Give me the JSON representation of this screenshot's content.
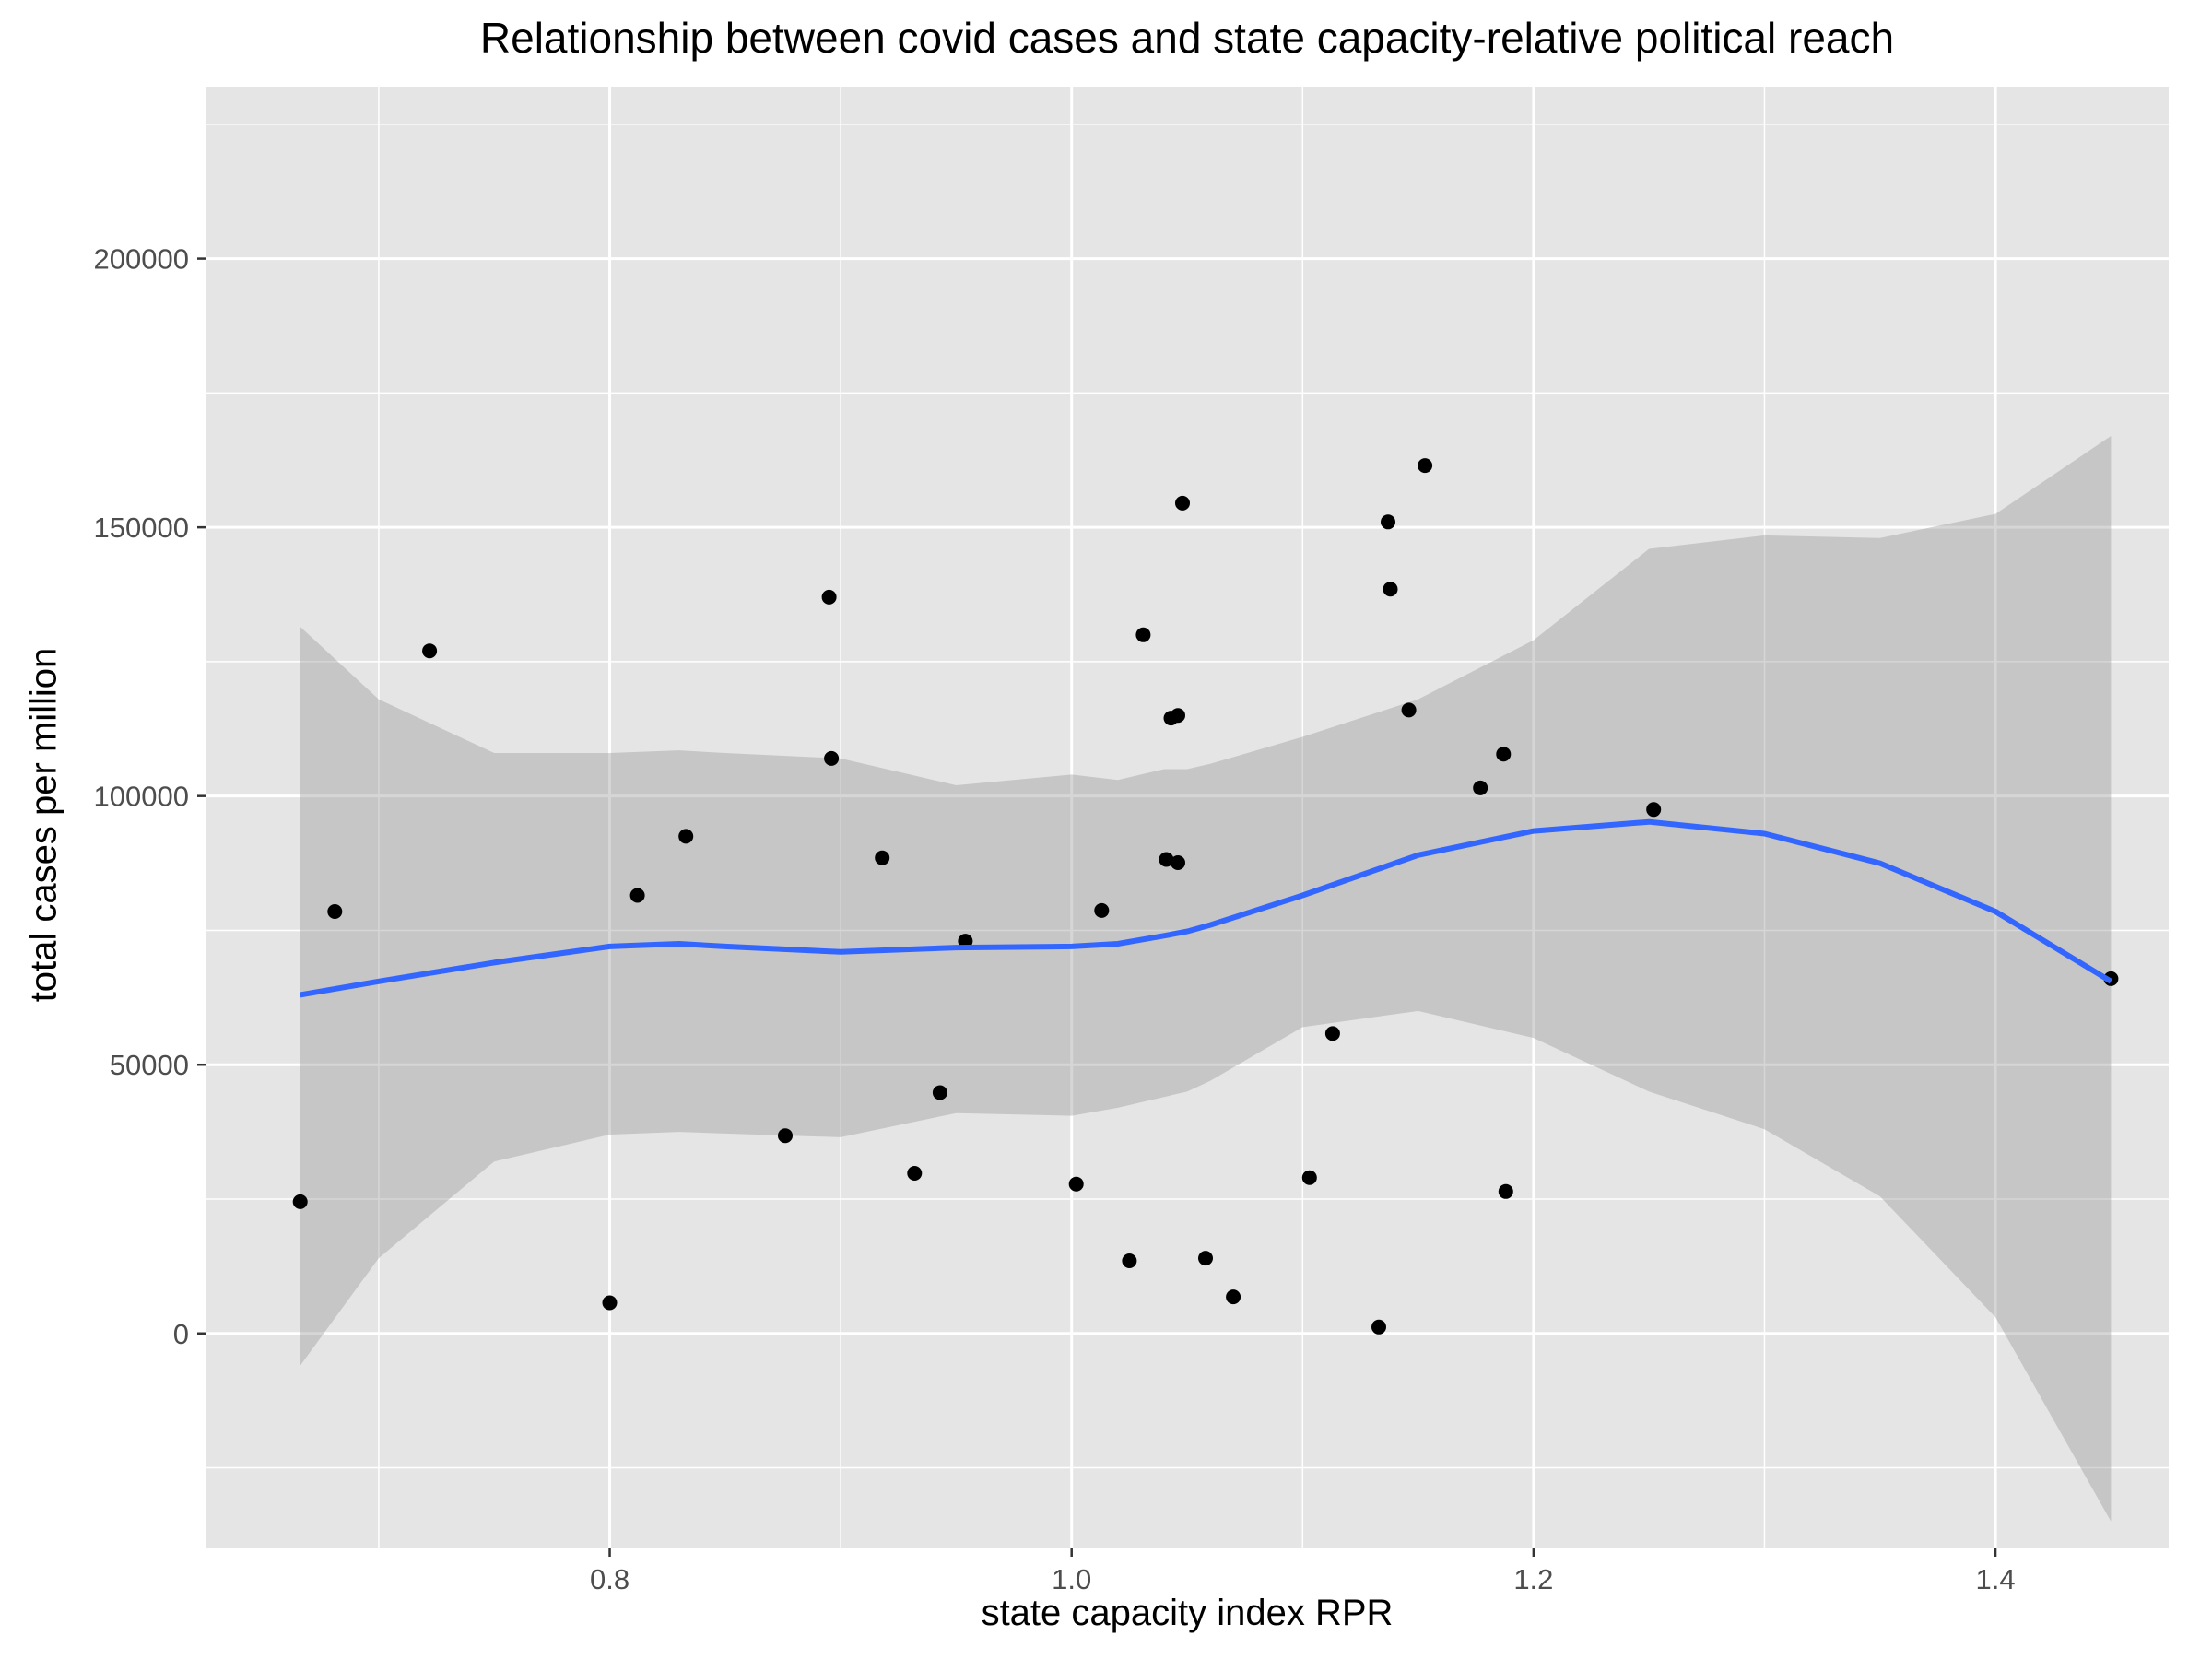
{
  "chart_data": {
    "type": "scatter",
    "title": "Relationship between covid cases and state capacity-relative political reach",
    "xlabel": "state capacity index RPR",
    "ylabel": "total cases per million",
    "xlim": [
      0.625,
      1.475
    ],
    "ylim": [
      -40000,
      232000
    ],
    "x_ticks": [
      0.8,
      1.0,
      1.2,
      1.4
    ],
    "x_tick_labels": [
      "0.8",
      "1.0",
      "1.2",
      "1.4"
    ],
    "y_ticks": [
      0,
      50000,
      100000,
      150000,
      200000
    ],
    "y_tick_labels": [
      "0",
      "50000",
      "100000",
      "150000",
      "200000"
    ],
    "grid": true,
    "colors": {
      "panel": "#e5e5e5",
      "grid": "#ffffff",
      "points": "#000000",
      "smooth_line": "#3366ff",
      "ribbon": "#999999"
    },
    "series": [
      {
        "kind": "points",
        "x": [
          0.666,
          0.681,
          0.722,
          0.8,
          0.812,
          0.833,
          0.876,
          0.895,
          0.896,
          0.918,
          0.932,
          0.943,
          0.954,
          1.002,
          1.013,
          1.025,
          1.031,
          1.041,
          1.043,
          1.046,
          1.046,
          1.048,
          1.058,
          1.07,
          1.103,
          1.113,
          1.133,
          1.137,
          1.138,
          1.146,
          1.153,
          1.177,
          1.187,
          1.188,
          1.252,
          1.45
        ],
        "y": [
          24500,
          78500,
          127000,
          5700,
          81500,
          92500,
          36800,
          137000,
          107000,
          88500,
          29800,
          44800,
          73000,
          27800,
          78700,
          13500,
          130000,
          88200,
          114500,
          115000,
          87600,
          154500,
          14000,
          6800,
          29000,
          55800,
          1200,
          151000,
          138500,
          116000,
          161500,
          101500,
          107800,
          26400,
          97500,
          66000
        ]
      },
      {
        "kind": "loess",
        "x": [
          0.666,
          0.7,
          0.75,
          0.8,
          0.83,
          0.85,
          0.9,
          0.95,
          1.0,
          1.02,
          1.04,
          1.05,
          1.06,
          1.1,
          1.15,
          1.2,
          1.25,
          1.3,
          1.35,
          1.4,
          1.45
        ],
        "y": [
          63000,
          65500,
          69000,
          72000,
          72500,
          72000,
          71000,
          71800,
          72000,
          72500,
          74000,
          74800,
          76000,
          81500,
          89000,
          93500,
          95200,
          93000,
          87500,
          78500,
          65500
        ],
        "ci_upper": [
          131500,
          118000,
          108000,
          108000,
          108500,
          108000,
          107000,
          102000,
          104000,
          103000,
          105000,
          105000,
          106000,
          111000,
          118000,
          129000,
          146000,
          148500,
          148000,
          152500,
          167000
        ],
        "ci_lower": [
          -6000,
          14000,
          32000,
          37000,
          37500,
          37200,
          36500,
          41000,
          40500,
          42000,
          44000,
          45000,
          47000,
          57000,
          60000,
          55000,
          45000,
          38000,
          25500,
          3000,
          -35000
        ]
      }
    ]
  }
}
